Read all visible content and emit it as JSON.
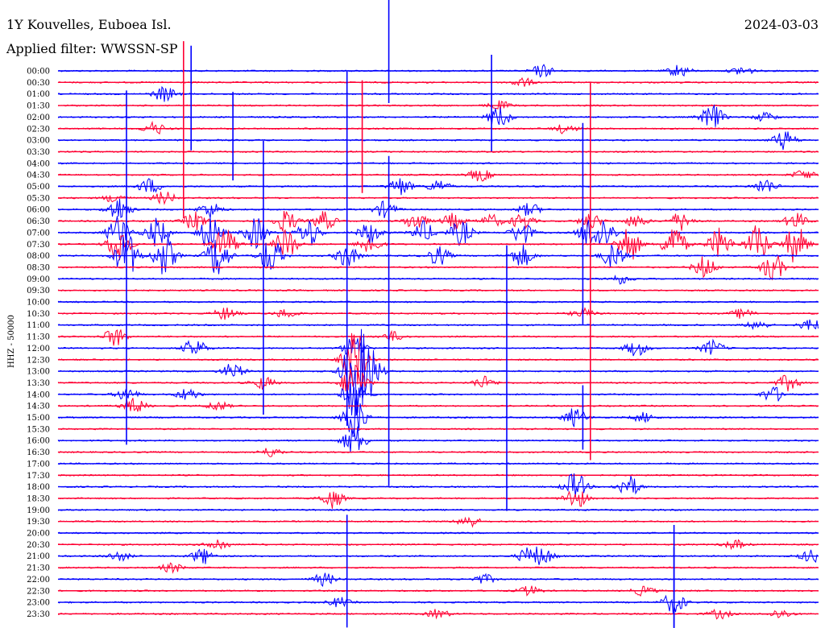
{
  "header": {
    "station": "1Y Kouvelles, Euboea Isl.",
    "filter": "Applied filter: WWSSN-SP",
    "date": "2024-03-03"
  },
  "chart_data": {
    "type": "line",
    "title": "1Y Kouvelles, Euboea Isl.",
    "subtitle": "Applied filter: WWSSN-SP",
    "ylabel": "HHZ - 50000",
    "series_colors": [
      "#0000ff",
      "#ff0033"
    ],
    "time_labels": [
      "00:00",
      "00:30",
      "01:00",
      "01:30",
      "02:00",
      "02:30",
      "03:00",
      "03:30",
      "04:00",
      "04:30",
      "05:00",
      "05:30",
      "06:00",
      "06:30",
      "07:00",
      "07:30",
      "08:00",
      "08:30",
      "09:00",
      "09:30",
      "10:00",
      "10:30",
      "11:00",
      "11:30",
      "12:00",
      "12:30",
      "13:00",
      "13:30",
      "14:00",
      "14:30",
      "15:00",
      "15:30",
      "16:00",
      "16:30",
      "17:00",
      "17:30",
      "18:00",
      "18:30",
      "19:00",
      "19:30",
      "20:00",
      "20:30",
      "21:00",
      "21:30",
      "22:00",
      "22:30",
      "23:00",
      "23:30"
    ],
    "events": [
      {
        "row": 0,
        "x": 0.637,
        "amp": 8
      },
      {
        "row": 0,
        "x": 0.817,
        "amp": 8
      },
      {
        "row": 0,
        "x": 0.9,
        "amp": 6
      },
      {
        "row": 1,
        "x": 0.61,
        "amp": 6
      },
      {
        "row": 2,
        "x": 0.14,
        "amp": 10
      },
      {
        "row": 3,
        "x": 0.58,
        "amp": 6
      },
      {
        "row": 4,
        "x": 0.58,
        "amp": 14
      },
      {
        "row": 4,
        "x": 0.86,
        "amp": 16
      },
      {
        "row": 4,
        "x": 0.93,
        "amp": 6
      },
      {
        "row": 5,
        "x": 0.127,
        "amp": 8
      },
      {
        "row": 5,
        "x": 0.667,
        "amp": 6
      },
      {
        "row": 6,
        "x": 0.955,
        "amp": 12
      },
      {
        "row": 9,
        "x": 0.555,
        "amp": 8
      },
      {
        "row": 9,
        "x": 0.98,
        "amp": 6
      },
      {
        "row": 10,
        "x": 0.12,
        "amp": 10
      },
      {
        "row": 10,
        "x": 0.45,
        "amp": 12
      },
      {
        "row": 10,
        "x": 0.5,
        "amp": 8
      },
      {
        "row": 10,
        "x": 0.93,
        "amp": 10
      },
      {
        "row": 11,
        "x": 0.075,
        "amp": 6
      },
      {
        "row": 11,
        "x": 0.14,
        "amp": 8
      },
      {
        "row": 12,
        "x": 0.08,
        "amp": 16
      },
      {
        "row": 12,
        "x": 0.2,
        "amp": 10
      },
      {
        "row": 12,
        "x": 0.43,
        "amp": 10
      },
      {
        "row": 12,
        "x": 0.62,
        "amp": 8
      },
      {
        "row": 13,
        "x": 0.18,
        "amp": 12
      },
      {
        "row": 13,
        "x": 0.3,
        "amp": 14
      },
      {
        "row": 13,
        "x": 0.35,
        "amp": 12
      },
      {
        "row": 13,
        "x": 0.47,
        "amp": 12
      },
      {
        "row": 13,
        "x": 0.52,
        "amp": 10
      },
      {
        "row": 13,
        "x": 0.57,
        "amp": 8
      },
      {
        "row": 13,
        "x": 0.61,
        "amp": 10
      },
      {
        "row": 13,
        "x": 0.7,
        "amp": 10
      },
      {
        "row": 13,
        "x": 0.76,
        "amp": 8
      },
      {
        "row": 13,
        "x": 0.82,
        "amp": 12
      },
      {
        "row": 13,
        "x": 0.97,
        "amp": 10
      },
      {
        "row": 14,
        "x": 0.08,
        "amp": 22
      },
      {
        "row": 14,
        "x": 0.13,
        "amp": 18
      },
      {
        "row": 14,
        "x": 0.2,
        "amp": 22
      },
      {
        "row": 14,
        "x": 0.26,
        "amp": 20
      },
      {
        "row": 14,
        "x": 0.33,
        "amp": 18
      },
      {
        "row": 14,
        "x": 0.41,
        "amp": 14
      },
      {
        "row": 14,
        "x": 0.48,
        "amp": 14
      },
      {
        "row": 14,
        "x": 0.53,
        "amp": 16
      },
      {
        "row": 14,
        "x": 0.61,
        "amp": 14
      },
      {
        "row": 14,
        "x": 0.7,
        "amp": 20
      },
      {
        "row": 14,
        "x": 0.72,
        "amp": 16
      },
      {
        "row": 15,
        "x": 0.08,
        "amp": 24
      },
      {
        "row": 15,
        "x": 0.22,
        "amp": 22
      },
      {
        "row": 15,
        "x": 0.3,
        "amp": 20
      },
      {
        "row": 15,
        "x": 0.41,
        "amp": 12
      },
      {
        "row": 15,
        "x": 0.75,
        "amp": 24
      },
      {
        "row": 15,
        "x": 0.81,
        "amp": 26
      },
      {
        "row": 15,
        "x": 0.87,
        "amp": 20
      },
      {
        "row": 15,
        "x": 0.92,
        "amp": 24
      },
      {
        "row": 15,
        "x": 0.97,
        "amp": 24
      },
      {
        "row": 16,
        "x": 0.09,
        "amp": 30
      },
      {
        "row": 16,
        "x": 0.14,
        "amp": 26
      },
      {
        "row": 16,
        "x": 0.21,
        "amp": 28
      },
      {
        "row": 16,
        "x": 0.28,
        "amp": 24
      },
      {
        "row": 16,
        "x": 0.38,
        "amp": 14
      },
      {
        "row": 16,
        "x": 0.5,
        "amp": 12
      },
      {
        "row": 16,
        "x": 0.61,
        "amp": 14
      },
      {
        "row": 16,
        "x": 0.73,
        "amp": 16
      },
      {
        "row": 17,
        "x": 0.85,
        "amp": 14
      },
      {
        "row": 17,
        "x": 0.94,
        "amp": 18
      },
      {
        "row": 18,
        "x": 0.74,
        "amp": 6
      },
      {
        "row": 21,
        "x": 0.22,
        "amp": 8
      },
      {
        "row": 21,
        "x": 0.3,
        "amp": 6
      },
      {
        "row": 21,
        "x": 0.69,
        "amp": 6
      },
      {
        "row": 21,
        "x": 0.9,
        "amp": 6
      },
      {
        "row": 22,
        "x": 0.92,
        "amp": 6
      },
      {
        "row": 22,
        "x": 0.99,
        "amp": 8
      },
      {
        "row": 23,
        "x": 0.075,
        "amp": 12
      },
      {
        "row": 23,
        "x": 0.44,
        "amp": 6
      },
      {
        "row": 24,
        "x": 0.18,
        "amp": 12
      },
      {
        "row": 24,
        "x": 0.39,
        "amp": 16
      },
      {
        "row": 24,
        "x": 0.76,
        "amp": 10
      },
      {
        "row": 24,
        "x": 0.86,
        "amp": 10
      },
      {
        "row": 25,
        "x": 0.39,
        "amp": 40
      },
      {
        "row": 26,
        "x": 0.23,
        "amp": 10
      },
      {
        "row": 26,
        "x": 0.39,
        "amp": 60
      },
      {
        "row": 26,
        "x": 0.41,
        "amp": 30
      },
      {
        "row": 27,
        "x": 0.27,
        "amp": 8
      },
      {
        "row": 27,
        "x": 0.39,
        "amp": 30
      },
      {
        "row": 27,
        "x": 0.56,
        "amp": 8
      },
      {
        "row": 27,
        "x": 0.96,
        "amp": 10
      },
      {
        "row": 28,
        "x": 0.09,
        "amp": 8
      },
      {
        "row": 28,
        "x": 0.17,
        "amp": 8
      },
      {
        "row": 28,
        "x": 0.39,
        "amp": 30
      },
      {
        "row": 28,
        "x": 0.94,
        "amp": 10
      },
      {
        "row": 29,
        "x": 0.1,
        "amp": 10
      },
      {
        "row": 29,
        "x": 0.21,
        "amp": 6
      },
      {
        "row": 30,
        "x": 0.39,
        "amp": 30
      },
      {
        "row": 30,
        "x": 0.68,
        "amp": 12
      },
      {
        "row": 30,
        "x": 0.77,
        "amp": 6
      },
      {
        "row": 32,
        "x": 0.39,
        "amp": 20
      },
      {
        "row": 33,
        "x": 0.28,
        "amp": 6
      },
      {
        "row": 36,
        "x": 0.68,
        "amp": 18
      },
      {
        "row": 36,
        "x": 0.75,
        "amp": 14
      },
      {
        "row": 37,
        "x": 0.36,
        "amp": 12
      },
      {
        "row": 37,
        "x": 0.68,
        "amp": 14
      },
      {
        "row": 39,
        "x": 0.54,
        "amp": 8
      },
      {
        "row": 41,
        "x": 0.21,
        "amp": 8
      },
      {
        "row": 41,
        "x": 0.89,
        "amp": 6
      },
      {
        "row": 42,
        "x": 0.08,
        "amp": 6
      },
      {
        "row": 42,
        "x": 0.19,
        "amp": 10
      },
      {
        "row": 42,
        "x": 0.62,
        "amp": 12
      },
      {
        "row": 42,
        "x": 0.64,
        "amp": 8
      },
      {
        "row": 42,
        "x": 0.99,
        "amp": 8
      },
      {
        "row": 43,
        "x": 0.15,
        "amp": 6
      },
      {
        "row": 44,
        "x": 0.35,
        "amp": 8
      },
      {
        "row": 44,
        "x": 0.56,
        "amp": 6
      },
      {
        "row": 45,
        "x": 0.62,
        "amp": 6
      },
      {
        "row": 45,
        "x": 0.77,
        "amp": 6
      },
      {
        "row": 46,
        "x": 0.37,
        "amp": 6
      },
      {
        "row": 46,
        "x": 0.81,
        "amp": 14
      },
      {
        "row": 47,
        "x": 0.5,
        "amp": 6
      },
      {
        "row": 47,
        "x": 0.87,
        "amp": 6
      },
      {
        "row": 47,
        "x": 0.95,
        "amp": 6
      }
    ],
    "spikes": [
      {
        "row": 0,
        "x": 0.435,
        "up": 90,
        "down": 40
      },
      {
        "row": 0,
        "x": 0.57,
        "up": 20,
        "down": 100
      },
      {
        "row": 2,
        "x": 0.175,
        "up": 60,
        "down": 70
      },
      {
        "row": 3,
        "x": 0.165,
        "up": 80,
        "down": 140
      },
      {
        "row": 5,
        "x": 0.4,
        "up": 60,
        "down": 80
      },
      {
        "row": 6,
        "x": 0.23,
        "up": 60,
        "down": 50
      },
      {
        "row": 8,
        "x": 0.69,
        "up": 50,
        "down": 200
      },
      {
        "row": 14,
        "x": 0.38,
        "up": 200,
        "down": 240
      },
      {
        "row": 20,
        "x": 0.27,
        "up": 200,
        "down": 140
      },
      {
        "row": 22,
        "x": 0.435,
        "up": 210,
        "down": 200
      },
      {
        "row": 24,
        "x": 0.09,
        "up": 320,
        "down": 120
      },
      {
        "row": 30,
        "x": 0.69,
        "up": 40,
        "down": 40
      },
      {
        "row": 33,
        "x": 0.7,
        "up": 460,
        "down": 10
      },
      {
        "row": 36,
        "x": 0.59,
        "up": 300,
        "down": 30
      },
      {
        "row": 40,
        "x": 0.81,
        "up": 10,
        "down": 120
      },
      {
        "row": 44,
        "x": 0.38,
        "up": 80,
        "down": 60
      },
      {
        "row": 44,
        "x": 0.81,
        "up": 40,
        "down": 60
      }
    ]
  }
}
